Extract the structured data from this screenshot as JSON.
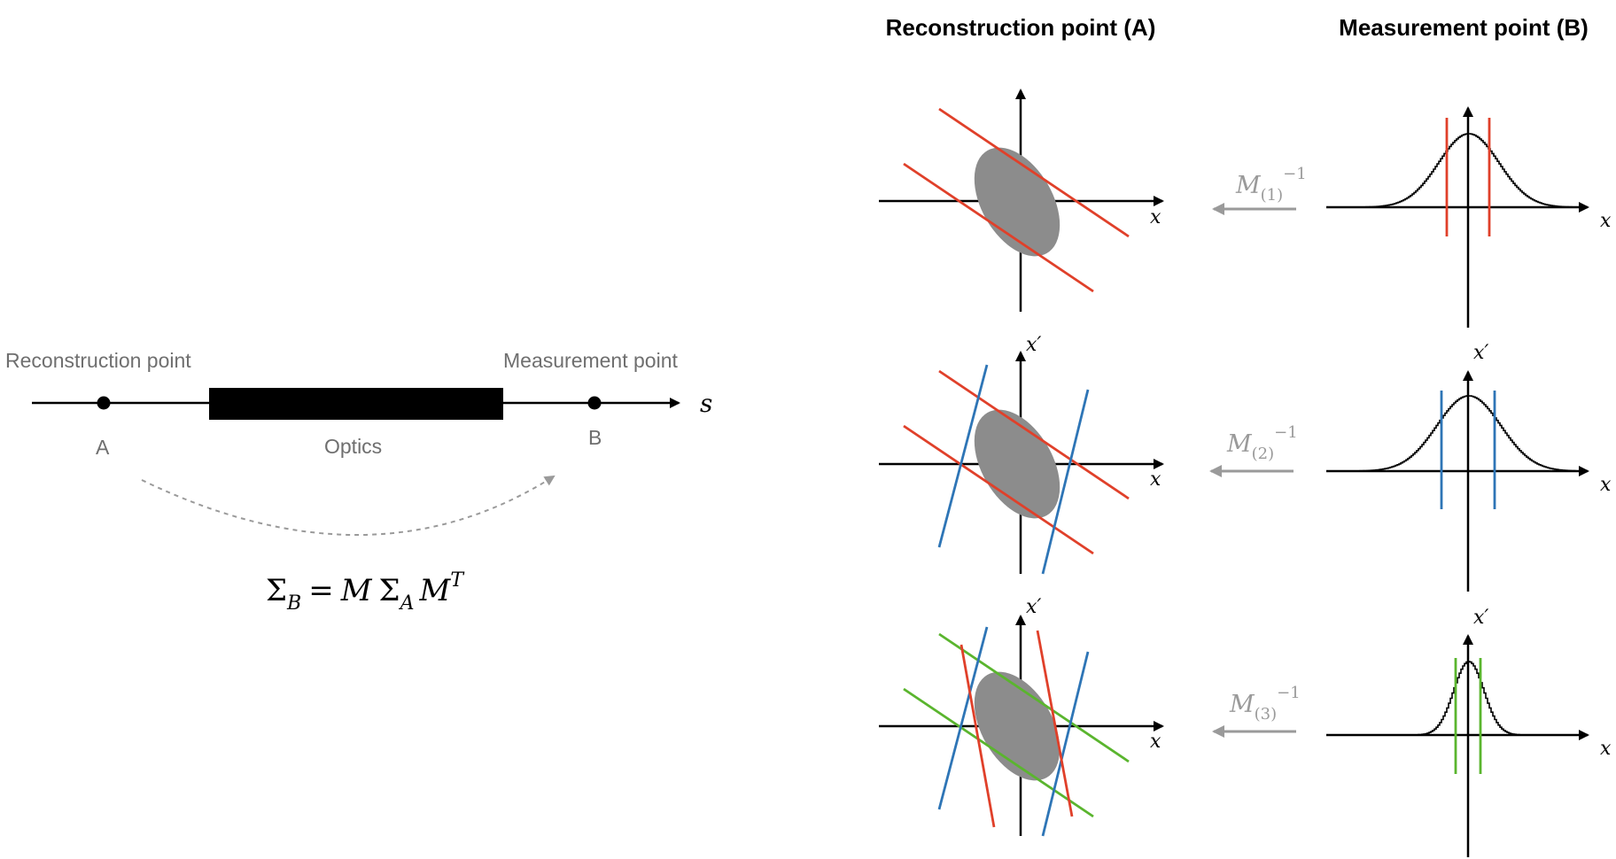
{
  "beamline": {
    "reconstruction_label": "Reconstruction point",
    "measurement_label": "Measurement point",
    "point_a": "A",
    "point_b": "B",
    "optics_label": "Optics",
    "axis_label": "s",
    "equation": {
      "sigma_b": "Σ",
      "sub_b": "B",
      "equals": "=",
      "m": "M",
      "sigma_a": "Σ",
      "sub_a": "A",
      "m2": "M",
      "sup_t": "T"
    }
  },
  "headers": {
    "reconstruction": "Reconstruction point (A)",
    "measurement": "Measurement point (B)"
  },
  "axes": {
    "x": "x",
    "xprime": "x′"
  },
  "rows": [
    {
      "matrix": "M",
      "sub": "(1)",
      "sup": "−1",
      "projection_color": "#e0402a"
    },
    {
      "matrix": "M",
      "sub": "(2)",
      "sup": "−1",
      "projection_color": "#2e75b6"
    },
    {
      "matrix": "M",
      "sub": "(3)",
      "sup": "−1",
      "projection_color": "#5ab52e"
    }
  ],
  "colors": {
    "ellipse": "#8c8c8c",
    "arrow": "#9a9a9a",
    "red": "#e0402a",
    "blue": "#2e75b6",
    "green": "#5ab52e"
  }
}
